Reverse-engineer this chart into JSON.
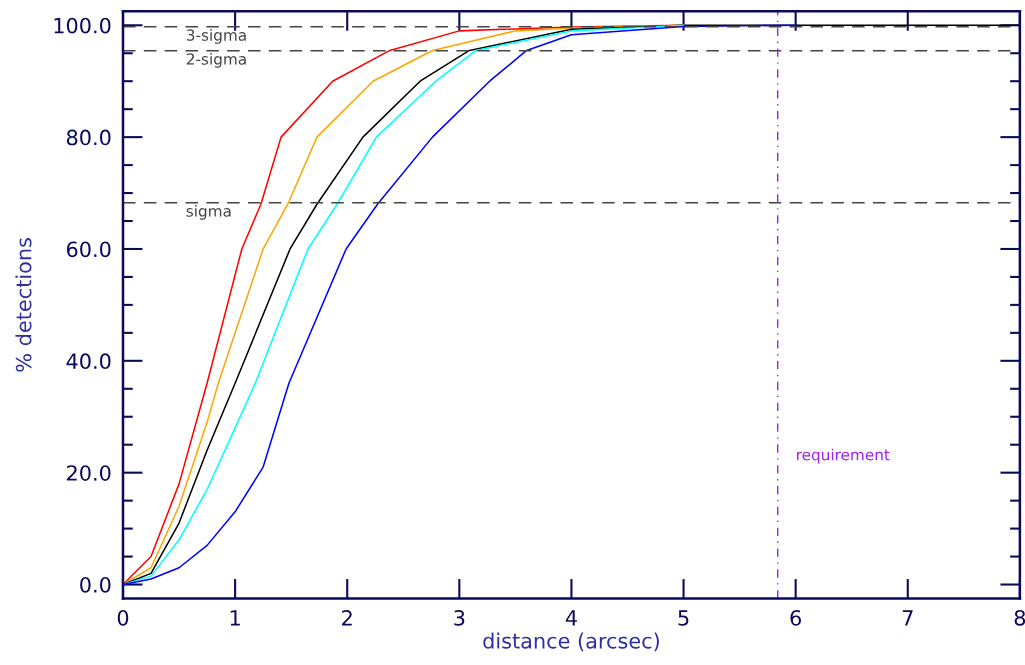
{
  "chart_data": {
    "type": "line",
    "xlabel": "distance (arcsec)",
    "ylabel": "% detections",
    "xlim": [
      0,
      8
    ],
    "ylim": [
      -2.5,
      102.5
    ],
    "xticks": [
      0,
      1,
      2,
      3,
      4,
      5,
      6,
      7,
      8
    ],
    "yticks": [
      {
        "value": 0,
        "label": "0.0"
      },
      {
        "value": 5,
        "label": null
      },
      {
        "value": 10,
        "label": null
      },
      {
        "value": 15,
        "label": null
      },
      {
        "value": 20,
        "label": "20.0"
      },
      {
        "value": 25,
        "label": null
      },
      {
        "value": 30,
        "label": null
      },
      {
        "value": 35,
        "label": null
      },
      {
        "value": 40,
        "label": "40.0"
      },
      {
        "value": 45,
        "label": null
      },
      {
        "value": 50,
        "label": null
      },
      {
        "value": 55,
        "label": null
      },
      {
        "value": 60,
        "label": "60.0"
      },
      {
        "value": 65,
        "label": null
      },
      {
        "value": 70,
        "label": null
      },
      {
        "value": 75,
        "label": null
      },
      {
        "value": 80,
        "label": "80.0"
      },
      {
        "value": 85,
        "label": null
      },
      {
        "value": 90,
        "label": null
      },
      {
        "value": 95,
        "label": null
      },
      {
        "value": 100,
        "label": "100.0"
      }
    ],
    "grid": false,
    "legend": false,
    "series": [
      {
        "color": "#ff0000",
        "x": [
          0,
          0.25,
          0.5,
          0.75,
          1.06,
          1.23,
          1.41,
          1.87,
          2.38,
          3,
          4,
          5
        ],
        "values": [
          0,
          5,
          18,
          36,
          60,
          68,
          80,
          90,
          95.5,
          99,
          99.7,
          100
        ]
      },
      {
        "color": "#ffa500",
        "x": [
          0,
          0.25,
          0.5,
          0.75,
          0.85,
          1.25,
          1.47,
          1.73,
          2.23,
          2.76,
          3.5,
          4,
          5
        ],
        "values": [
          0,
          3,
          14,
          29,
          36,
          60,
          68,
          80,
          90,
          95.5,
          99,
          99.5,
          100
        ]
      },
      {
        "color": "#000000",
        "x": [
          0,
          0.25,
          0.5,
          0.75,
          1.0,
          1.49,
          1.73,
          2.14,
          2.65,
          3.09,
          4,
          5,
          6,
          7,
          8
        ],
        "values": [
          0,
          2,
          11,
          24,
          36,
          60,
          68,
          80,
          90,
          95.5,
          99.3,
          100,
          100,
          100,
          100
        ]
      },
      {
        "color": "#00ffff",
        "x": [
          0,
          0.25,
          0.5,
          0.75,
          1.0,
          1.18,
          1.65,
          1.91,
          2.26,
          2.79,
          3.15,
          4,
          5
        ],
        "values": [
          0,
          1.5,
          8,
          17,
          28,
          36,
          60,
          68,
          80,
          90,
          95.5,
          99,
          100
        ]
      },
      {
        "color": "#0000ff",
        "x": [
          0,
          0.25,
          0.5,
          0.75,
          1.0,
          1.25,
          1.48,
          1.99,
          2.27,
          2.76,
          3.27,
          3.6,
          4,
          5,
          6
        ],
        "values": [
          0,
          1,
          3,
          7,
          13,
          21,
          36,
          60,
          68,
          80,
          90,
          95.5,
          98.3,
          99.8,
          100
        ]
      }
    ],
    "ref_lines": [
      {
        "axis": "y",
        "value": 99.73,
        "label": "3-sigma",
        "color": "#444444",
        "line_style": "dashed"
      },
      {
        "axis": "y",
        "value": 95.45,
        "label": "2-sigma",
        "color": "#444444",
        "line_style": "dashed"
      },
      {
        "axis": "y",
        "value": 68.27,
        "label": "sigma",
        "color": "#444444",
        "line_style": "dashed"
      },
      {
        "axis": "x",
        "value": 5.84,
        "label": "requirement",
        "color": "#a020f0",
        "line_style": "dashdot"
      }
    ]
  }
}
